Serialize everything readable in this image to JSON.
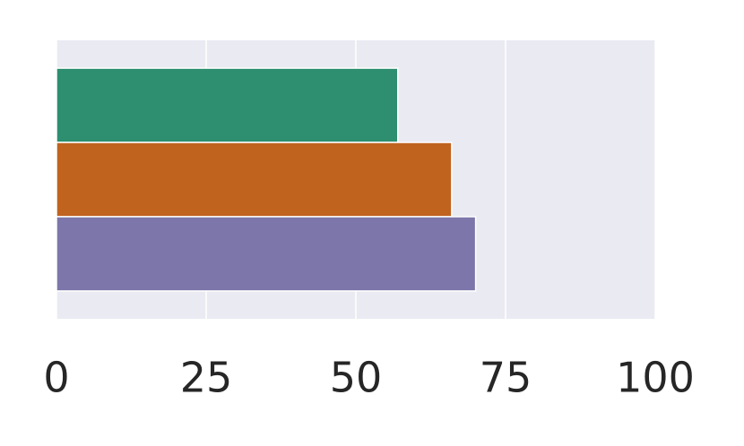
{
  "chart_data": {
    "type": "bar",
    "orientation": "horizontal",
    "values": [
      57,
      66,
      70
    ],
    "colors": [
      "#2d8f6f",
      "#c0631f",
      "#7c76aa"
    ],
    "xlim": [
      0,
      100
    ],
    "xticks": [
      0,
      25,
      50,
      75,
      100
    ],
    "grid": true
  }
}
